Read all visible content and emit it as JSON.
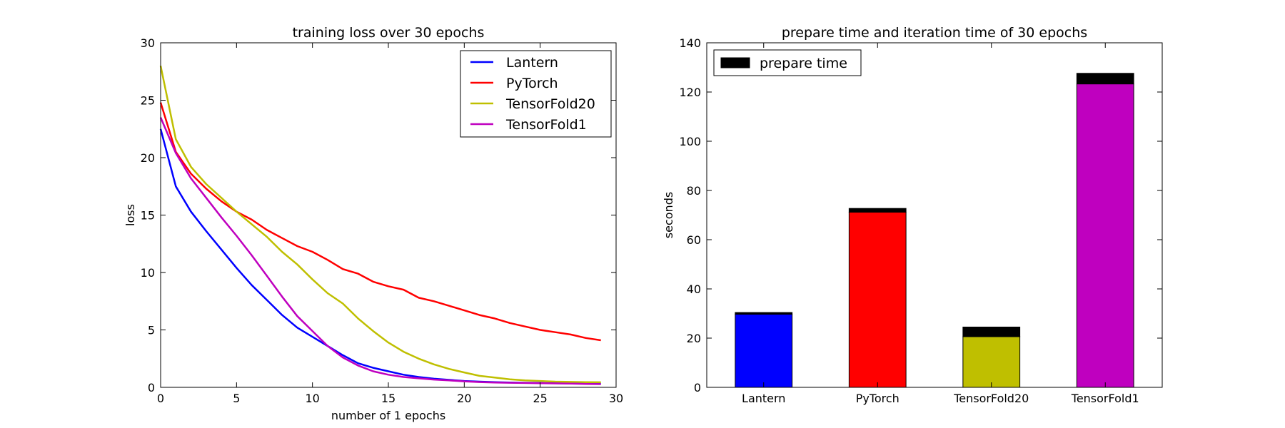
{
  "chart_data": [
    {
      "type": "line",
      "title": "training loss over 30 epochs",
      "xlabel": "number of  1 epochs",
      "ylabel": "loss",
      "xlim": [
        0,
        30
      ],
      "ylim": [
        0,
        30
      ],
      "xticks": [
        0,
        5,
        10,
        15,
        20,
        25,
        30
      ],
      "yticks": [
        0,
        5,
        10,
        15,
        20,
        25,
        30
      ],
      "grid": false,
      "legend_position": "top-right",
      "x": [
        0,
        1,
        2,
        3,
        4,
        5,
        6,
        7,
        8,
        9,
        10,
        11,
        12,
        13,
        14,
        15,
        16,
        17,
        18,
        19,
        20,
        21,
        22,
        23,
        24,
        25,
        26,
        27,
        28,
        29
      ],
      "series": [
        {
          "name": "Lantern",
          "color": "#0000ff",
          "values": [
            22.5,
            17.5,
            15.3,
            13.6,
            12.0,
            10.4,
            8.9,
            7.6,
            6.3,
            5.2,
            4.4,
            3.6,
            2.8,
            2.1,
            1.7,
            1.4,
            1.1,
            0.9,
            0.75,
            0.65,
            0.55,
            0.5,
            0.45,
            0.42,
            0.4,
            0.38,
            0.36,
            0.34,
            0.33,
            0.32
          ]
        },
        {
          "name": "PyTorch",
          "color": "#ff0000",
          "values": [
            24.8,
            20.5,
            18.6,
            17.3,
            16.2,
            15.3,
            14.6,
            13.7,
            13.0,
            12.3,
            11.8,
            11.1,
            10.3,
            9.9,
            9.2,
            8.8,
            8.5,
            7.8,
            7.5,
            7.1,
            6.7,
            6.3,
            6.0,
            5.6,
            5.3,
            5.0,
            4.8,
            4.6,
            4.3,
            4.1
          ]
        },
        {
          "name": "TensorFold20",
          "color": "#bfbf00",
          "values": [
            28.0,
            21.6,
            19.2,
            17.7,
            16.5,
            15.3,
            14.2,
            13.1,
            11.8,
            10.7,
            9.4,
            8.2,
            7.3,
            6.0,
            4.9,
            3.9,
            3.1,
            2.5,
            2.0,
            1.6,
            1.3,
            1.0,
            0.85,
            0.7,
            0.6,
            0.55,
            0.5,
            0.47,
            0.45,
            0.44
          ]
        },
        {
          "name": "TensorFold1",
          "color": "#bf00bf",
          "values": [
            23.5,
            20.4,
            18.2,
            16.5,
            14.8,
            13.2,
            11.5,
            9.7,
            7.9,
            6.2,
            4.9,
            3.6,
            2.6,
            1.9,
            1.4,
            1.1,
            0.9,
            0.78,
            0.68,
            0.6,
            0.52,
            0.46,
            0.42,
            0.4,
            0.38,
            0.36,
            0.34,
            0.32,
            0.3,
            0.28
          ]
        }
      ]
    },
    {
      "type": "bar",
      "stacked": true,
      "title": "prepare time and iteration time of 30 epochs",
      "xlabel": "",
      "ylabel": "seconds",
      "ylim": [
        0,
        140
      ],
      "yticks": [
        0,
        20,
        40,
        60,
        80,
        100,
        120,
        140
      ],
      "grid": false,
      "legend_position": "top-left",
      "categories": [
        "Lantern",
        "PyTorch",
        "TensorFold20",
        "TensorFold1"
      ],
      "bar_colors": [
        "#0000ff",
        "#ff0000",
        "#bfbf00",
        "#bf00bf"
      ],
      "series": [
        {
          "values": [
            29.7,
            71.2,
            20.6,
            123.3
          ]
        },
        {
          "name": "prepare time",
          "color": "#000000",
          "values": [
            0.7,
            1.5,
            3.9,
            4.3
          ]
        }
      ]
    }
  ]
}
